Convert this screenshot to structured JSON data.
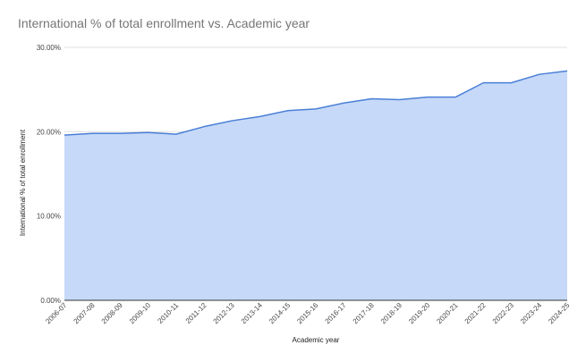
{
  "chart_data": {
    "type": "area",
    "title": "International % of total enrollment vs. Academic year",
    "xlabel": "Academic year",
    "ylabel": "International % of total enrollment",
    "ylim": [
      0,
      0.3
    ],
    "y_ticks": [
      0,
      0.1,
      0.2,
      0.3
    ],
    "y_tick_labels": [
      "0.00%",
      "10.00%",
      "20.00%",
      "30.00%"
    ],
    "grid": true,
    "legend": "none",
    "categories": [
      "2006-07",
      "2007-08",
      "2008-09",
      "2009-10",
      "2010-11",
      "2011-12",
      "2012-13",
      "2013-14",
      "2014-15",
      "2015-16",
      "2016-17",
      "2017-18",
      "2018-19",
      "2019-20",
      "2020-21",
      "2021-22",
      "2022-23",
      "2023-24",
      "2024-25"
    ],
    "series": [
      {
        "values": [
          0.196,
          0.198,
          0.198,
          0.199,
          0.197,
          0.206,
          0.213,
          0.218,
          0.225,
          0.227,
          0.234,
          0.239,
          0.238,
          0.241,
          0.241,
          0.258,
          0.258,
          0.268,
          0.272
        ]
      }
    ],
    "colors": {
      "line": "#4a7fd6",
      "fill": "#c6d9f8",
      "grid": "#e0e0e0"
    }
  }
}
